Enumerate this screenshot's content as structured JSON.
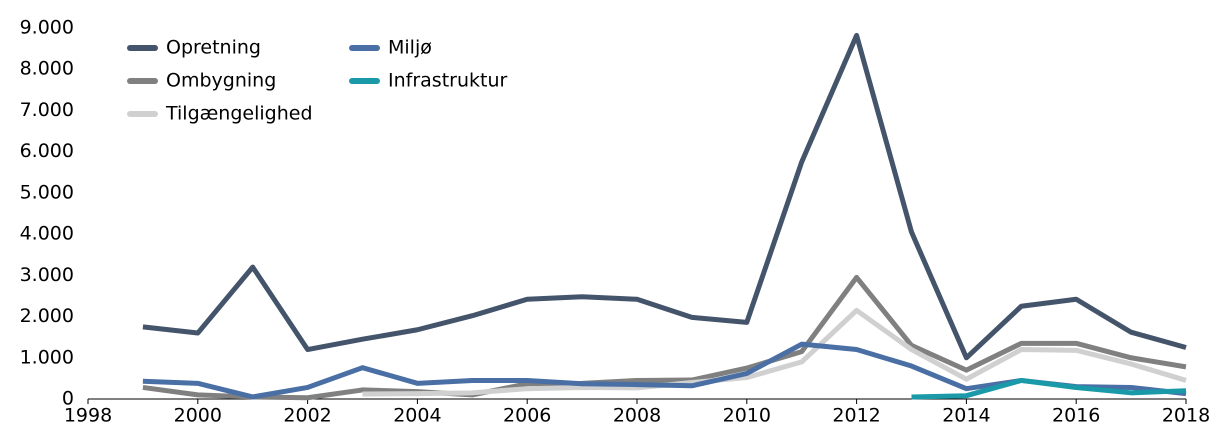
{
  "chart_data": {
    "type": "line",
    "x": [
      1999,
      2000,
      2001,
      2002,
      2003,
      2004,
      2005,
      2006,
      2007,
      2008,
      2009,
      2010,
      2011,
      2012,
      2013,
      2014,
      2015,
      2016,
      2017,
      2018
    ],
    "series": [
      {
        "name": "Opretning",
        "color": "#44546a",
        "values": [
          1750,
          1600,
          3200,
          1200,
          1450,
          1680,
          2020,
          2420,
          2480,
          2420,
          1980,
          1860,
          5750,
          8820,
          4050,
          1000,
          2250,
          2420,
          1620,
          1250
        ]
      },
      {
        "name": "Ombygning",
        "color": "#808080",
        "values": [
          280,
          100,
          50,
          30,
          220,
          180,
          100,
          370,
          380,
          450,
          460,
          750,
          1150,
          2950,
          1300,
          700,
          1350,
          1350,
          1000,
          780
        ]
      },
      {
        "name": "Tilgængelighed",
        "color": "#d0d0d0",
        "values": [
          null,
          null,
          null,
          null,
          120,
          130,
          150,
          250,
          280,
          270,
          400,
          520,
          900,
          2150,
          1200,
          480,
          1200,
          1180,
          850,
          450
        ]
      },
      {
        "name": "Miljø",
        "color": "#4a6fa5",
        "values": [
          430,
          380,
          50,
          280,
          760,
          380,
          450,
          450,
          370,
          350,
          320,
          620,
          1330,
          1200,
          800,
          250,
          450,
          300,
          280,
          130
        ]
      },
      {
        "name": "Infrastruktur",
        "color": "#1a9aa8",
        "values": [
          null,
          null,
          null,
          null,
          null,
          null,
          null,
          null,
          null,
          null,
          null,
          null,
          null,
          null,
          50,
          80,
          450,
          280,
          150,
          200
        ]
      }
    ],
    "xlim": [
      1998,
      2018
    ],
    "xticks": [
      1998,
      2000,
      2002,
      2004,
      2006,
      2008,
      2010,
      2012,
      2014,
      2016,
      2018
    ],
    "ylim": [
      0,
      9000
    ],
    "yticks": [
      0,
      {
        "value": 1000,
        "label": "1.000"
      },
      {
        "value": 2000,
        "label": "2.000"
      },
      {
        "value": 3000,
        "label": "3.000"
      },
      {
        "value": 4000,
        "label": "4.000"
      },
      {
        "value": 5000,
        "label": "5.000"
      },
      {
        "value": 6000,
        "label": "6.000"
      },
      {
        "value": 7000,
        "label": "7.000"
      },
      {
        "value": 8000,
        "label": "8.000"
      },
      {
        "value": 9000,
        "label": "9.000"
      }
    ],
    "grid": false,
    "legend": "upper left"
  }
}
